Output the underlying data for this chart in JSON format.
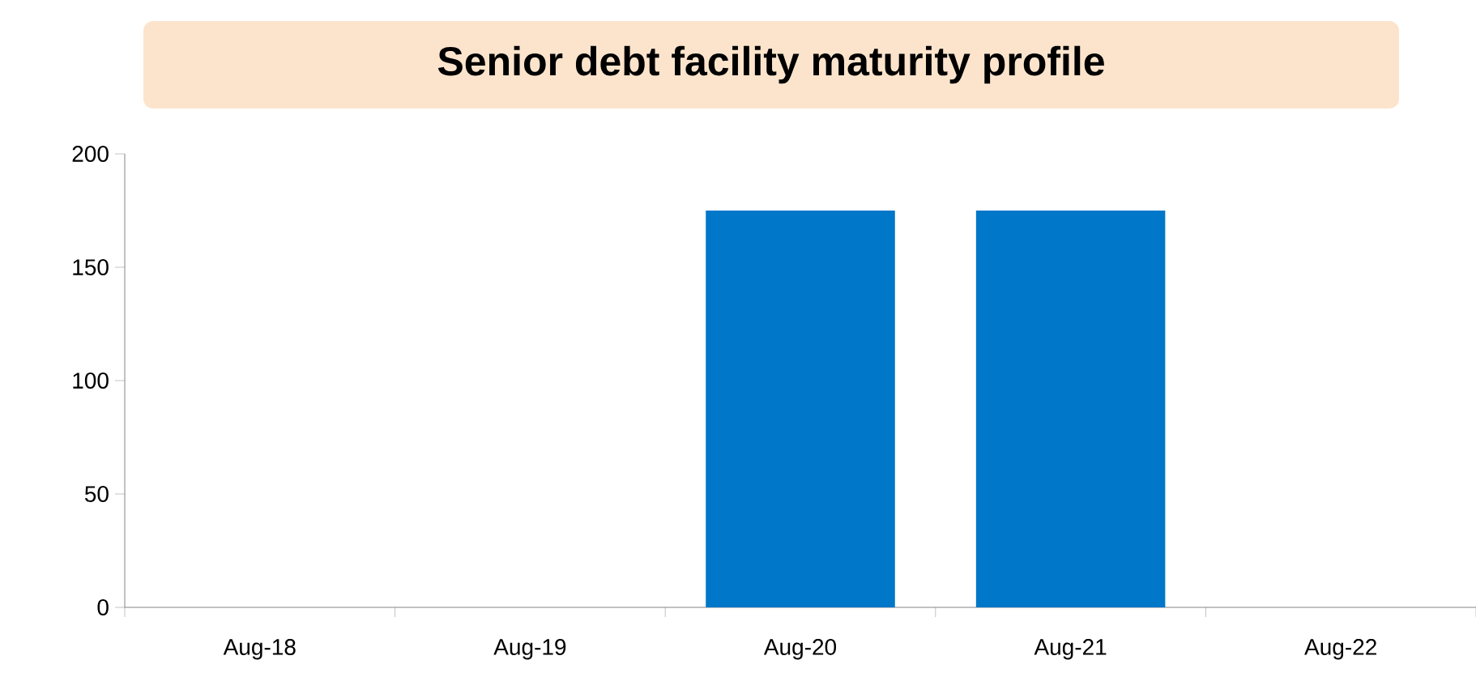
{
  "chart_data": {
    "type": "bar",
    "title": "Senior debt facility maturity profile",
    "categories": [
      "Aug-18",
      "Aug-19",
      "Aug-20",
      "Aug-21",
      "Aug-22"
    ],
    "values": [
      0,
      0,
      175,
      175,
      0
    ],
    "color": "#0077c8",
    "ylim": [
      0,
      200
    ],
    "yticks": [
      0,
      50,
      100,
      150,
      200
    ],
    "grid": false
  }
}
